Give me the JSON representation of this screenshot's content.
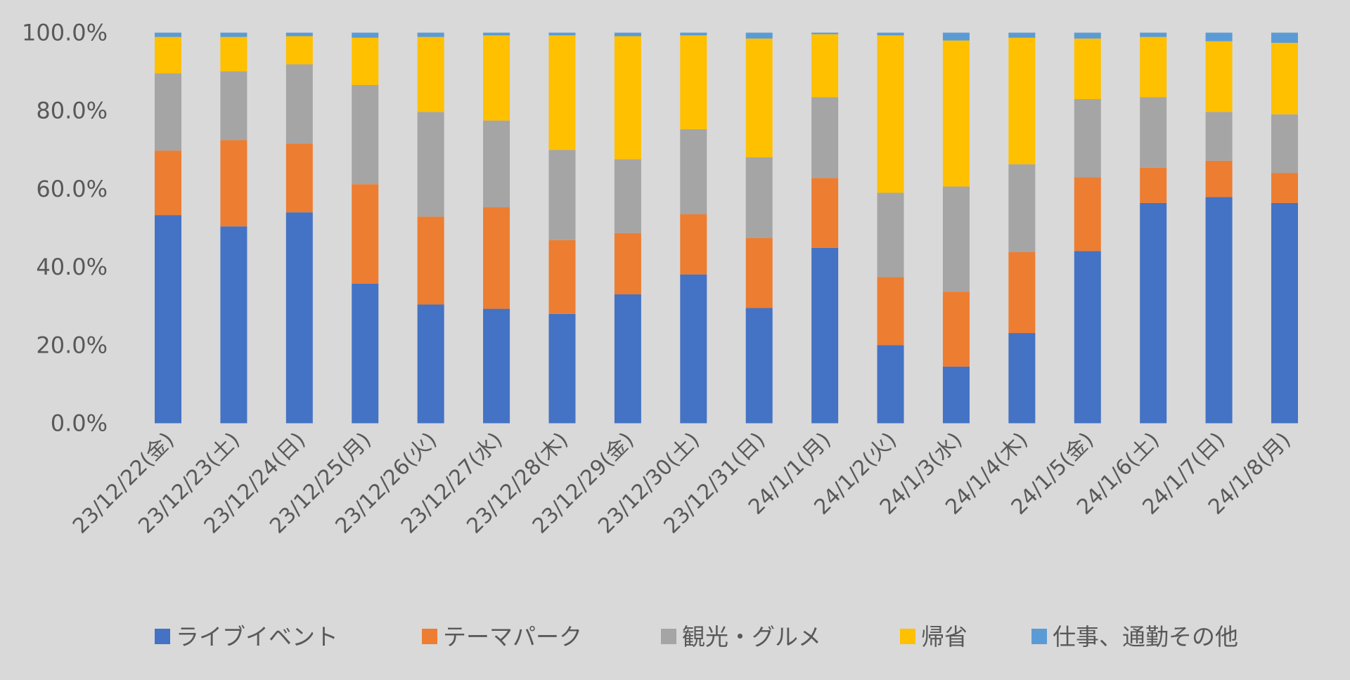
{
  "chart_data": {
    "type": "bar",
    "stacked": "percent",
    "title": "",
    "xlabel": "",
    "ylabel": "",
    "ylim": [
      0,
      100
    ],
    "y_ticks": [
      "0.0%",
      "20.0%",
      "40.0%",
      "60.0%",
      "80.0%",
      "100.0%"
    ],
    "grid": false,
    "legend_position": "bottom",
    "categories": [
      "23/12/22(金)",
      "23/12/23(土)",
      "23/12/24(日)",
      "23/12/25(月)",
      "23/12/26(火)",
      "23/12/27(水)",
      "23/12/28(木)",
      "23/12/29(金)",
      "23/12/30(土)",
      "23/12/31(日)",
      "24/1/1(月)",
      "24/1/2(火)",
      "24/1/3(水)",
      "24/1/4(木)",
      "24/1/5(金)",
      "24/1/6(土)",
      "24/1/7(日)",
      "24/1/8(月)"
    ],
    "series": [
      {
        "name": "ライブイベント",
        "color": "#4472c4",
        "values": [
          53.3,
          50.4,
          54.0,
          35.7,
          30.4,
          29.3,
          28.0,
          33.0,
          38.1,
          29.5,
          44.9,
          20.0,
          14.5,
          23.1,
          44.1,
          56.4,
          57.9,
          56.4
        ]
      },
      {
        "name": "テーマパーク",
        "color": "#ed7d31",
        "values": [
          16.5,
          22.1,
          17.6,
          25.5,
          22.5,
          26.0,
          18.9,
          15.7,
          15.4,
          17.9,
          17.9,
          17.4,
          19.2,
          20.7,
          18.9,
          9.0,
          9.3,
          7.7
        ]
      },
      {
        "name": "観光・グルメ",
        "color": "#a5a5a5",
        "values": [
          19.8,
          17.6,
          20.3,
          25.4,
          26.8,
          22.2,
          23.1,
          18.9,
          21.8,
          20.7,
          20.7,
          21.6,
          26.9,
          22.5,
          20.0,
          18.1,
          12.5,
          15.0
        ]
      },
      {
        "name": "帰省",
        "color": "#ffc000",
        "values": [
          9.3,
          8.8,
          7.2,
          12.1,
          19.2,
          21.8,
          29.3,
          31.5,
          24.0,
          30.4,
          16.1,
          40.3,
          37.4,
          32.4,
          15.5,
          15.4,
          18.1,
          18.3
        ]
      },
      {
        "name": "仕事、通勤その他",
        "color": "#5b9bd5",
        "values": [
          1.1,
          1.1,
          0.9,
          1.3,
          1.1,
          0.7,
          0.7,
          0.9,
          0.7,
          1.5,
          0.4,
          0.7,
          2.0,
          1.3,
          1.5,
          1.1,
          2.2,
          2.6
        ]
      }
    ]
  }
}
